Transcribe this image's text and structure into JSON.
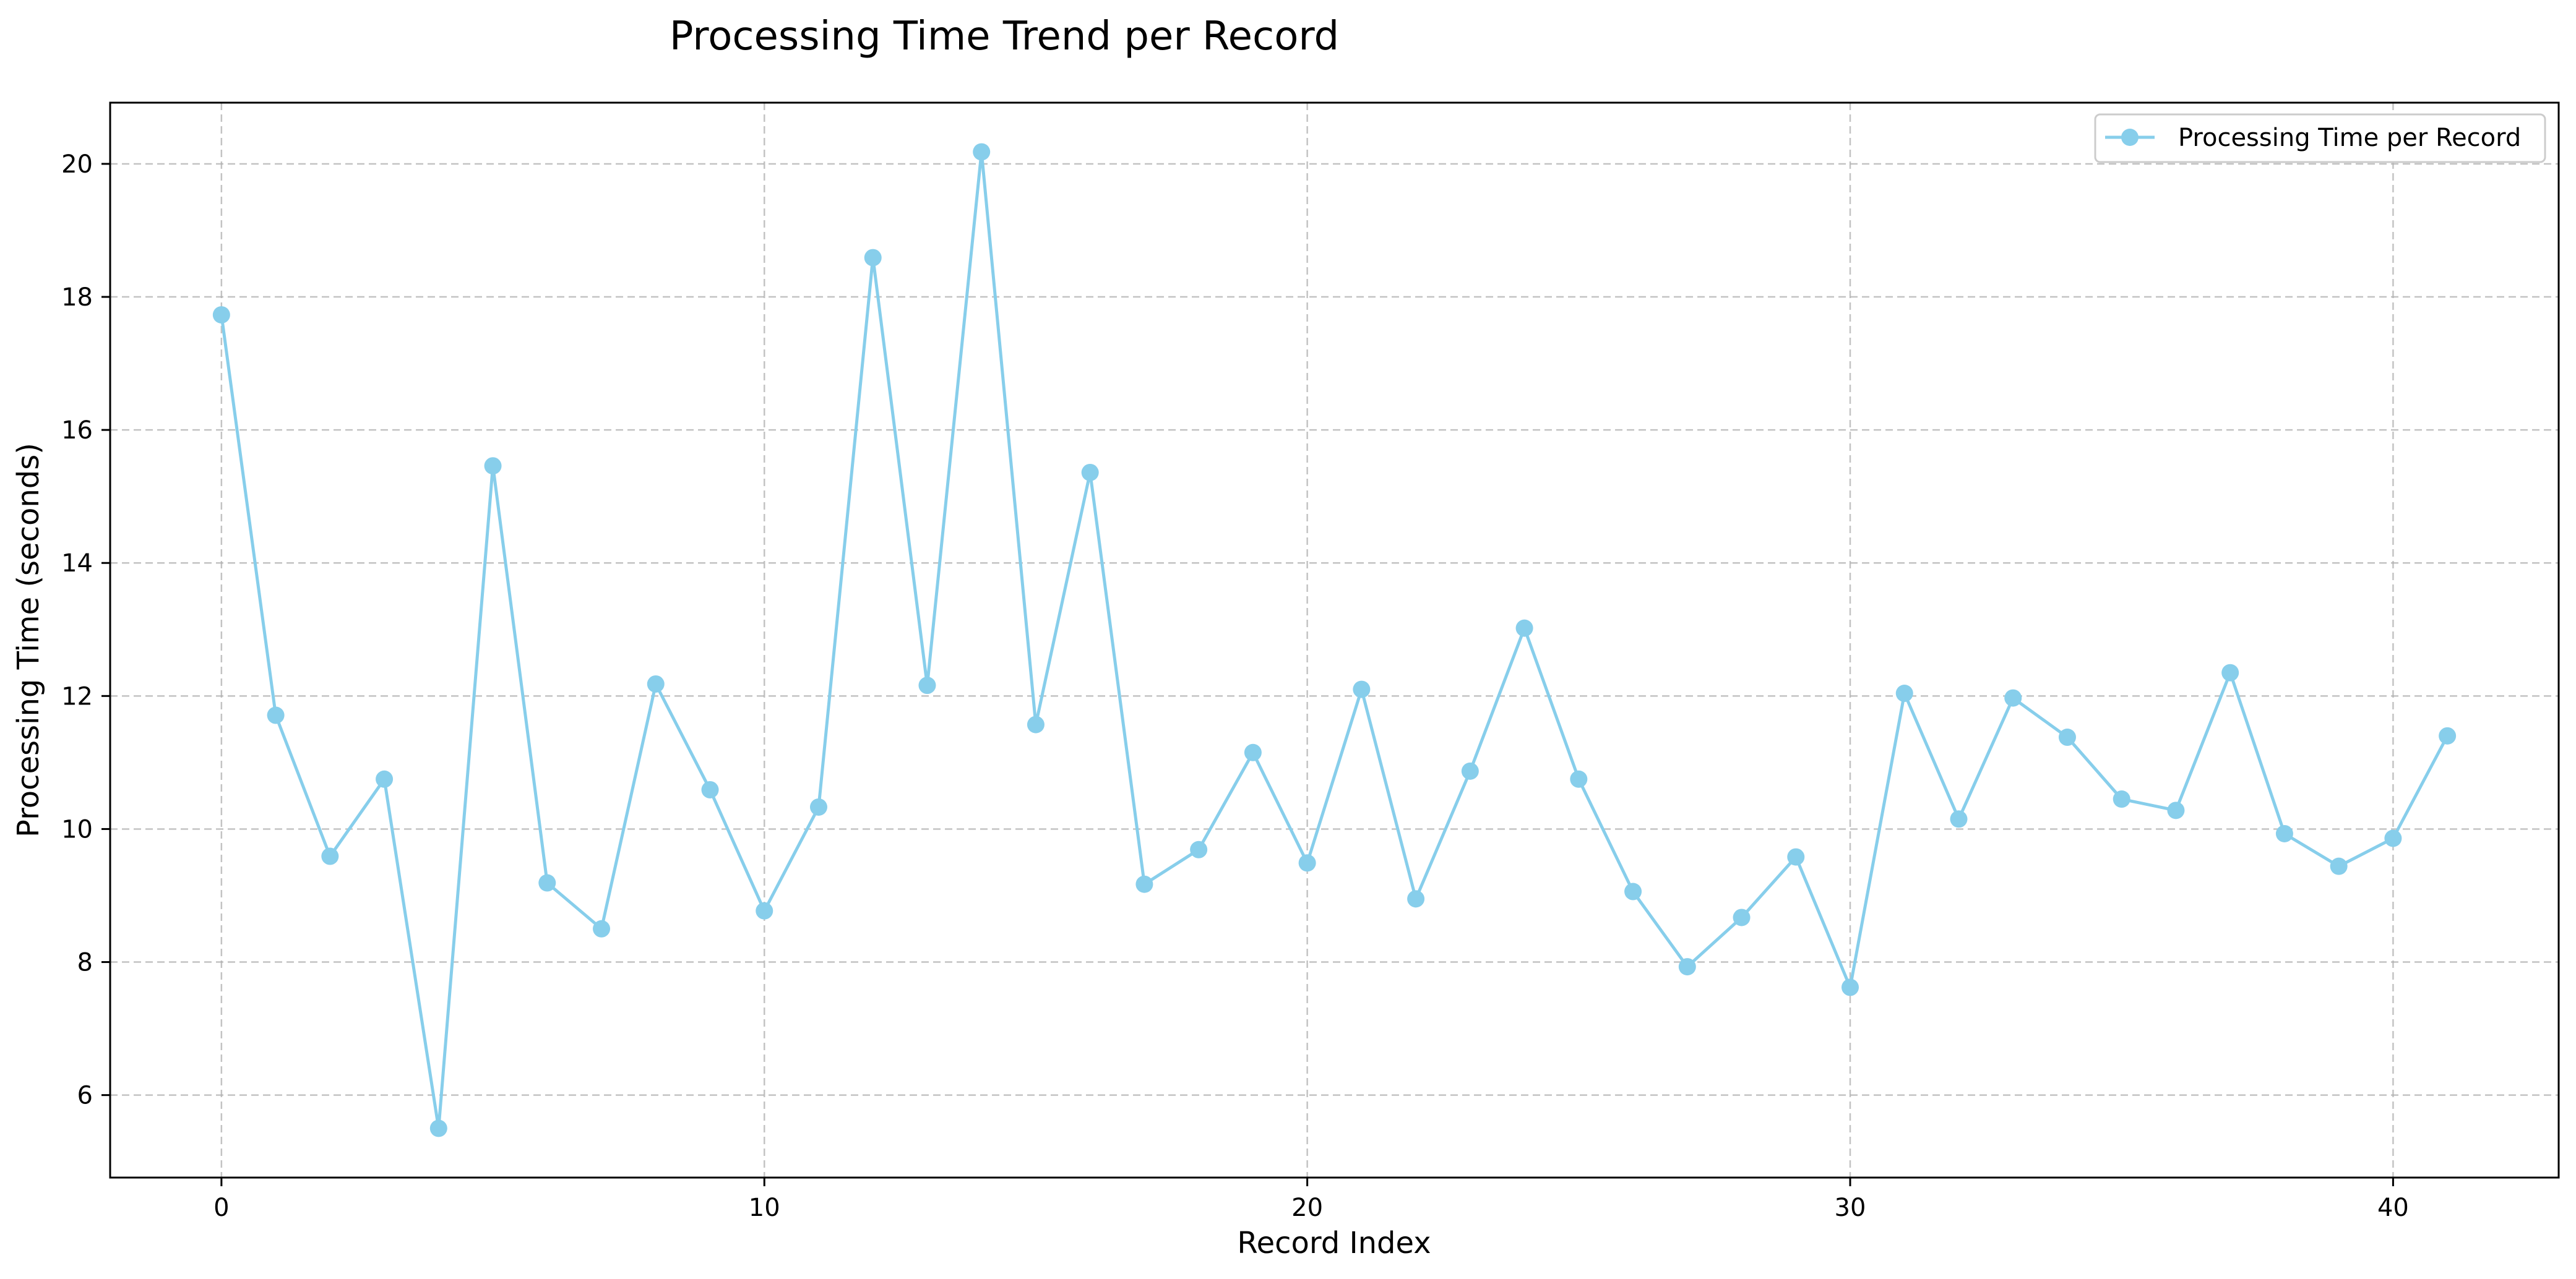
{
  "chart_data": {
    "type": "line",
    "title": "Processing Time Trend per Record",
    "xlabel": "Record Index",
    "ylabel": "Processing Time (seconds)",
    "xlim": [
      -2.05,
      43.05
    ],
    "ylim": [
      4.76,
      20.92
    ],
    "xticks": [
      0,
      10,
      20,
      30,
      40
    ],
    "yticks": [
      6,
      8,
      10,
      12,
      14,
      16,
      18,
      20
    ],
    "grid": true,
    "legend_position": "top-right",
    "series": [
      {
        "name": "Processing Time per Record",
        "color": "#87ceeb",
        "marker": "circle",
        "x": [
          0,
          1,
          2,
          3,
          4,
          5,
          6,
          7,
          8,
          9,
          10,
          11,
          12,
          13,
          14,
          15,
          16,
          17,
          18,
          19,
          20,
          21,
          22,
          23,
          24,
          25,
          26,
          27,
          28,
          29,
          30,
          31,
          32,
          33,
          34,
          35,
          36,
          37,
          38,
          39,
          40,
          41
        ],
        "values": [
          17.73,
          11.71,
          9.59,
          10.75,
          5.5,
          15.46,
          9.19,
          8.5,
          12.18,
          10.59,
          8.77,
          10.33,
          18.59,
          12.16,
          20.18,
          11.57,
          15.36,
          9.17,
          9.69,
          11.15,
          9.49,
          12.1,
          8.95,
          10.87,
          13.02,
          10.75,
          9.06,
          7.93,
          8.67,
          9.58,
          7.62,
          12.04,
          10.15,
          11.97,
          11.38,
          10.45,
          10.28,
          12.35,
          9.93,
          9.44,
          9.86,
          11.4
        ]
      }
    ]
  }
}
